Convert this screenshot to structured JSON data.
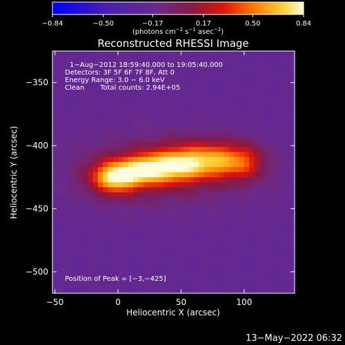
{
  "chart_data": {
    "type": "heatmap",
    "title": "Reconstructed RHESSI Image",
    "xlabel": "Heliocentric X (arcsec)",
    "ylabel": "Heliocentric Y (arcsec)",
    "xlim": [
      -52,
      140
    ],
    "ylim": [
      -517,
      -325
    ],
    "x_ticks": [
      -50,
      0,
      50,
      100
    ],
    "y_ticks": [
      -350,
      -400,
      -450,
      -500
    ],
    "colorbar": {
      "ticks": [
        -0.84,
        -0.5,
        -0.17,
        0.17,
        0.5,
        0.84
      ],
      "tick_labels": [
        "−0.84",
        "−0.50",
        "−0.17",
        "0.17",
        "0.50",
        "0.84"
      ],
      "range": [
        -0.84,
        0.84
      ],
      "unit_parts": [
        "(photons cm",
        "−2",
        " s",
        "−1",
        " asec",
        "−2",
        ")"
      ]
    },
    "annotations": [
      "1−Aug−2012 18:59:40.000 to 19:05:40.000",
      "Detectors: 3F 5F 6F 7F 8F, Att 0",
      "Energy Range: 3.0 − 6.0 keV",
      "Clean",
      "Total counts: 2.94E+05",
      "Position of Peak = [−3,−425]"
    ],
    "sources": [
      {
        "x": -3,
        "y": -425,
        "sx": 13,
        "sy": 9,
        "amp": 0.84
      },
      {
        "x": 22,
        "y": -419,
        "sx": 14,
        "sy": 9,
        "amp": 0.74
      },
      {
        "x": 48,
        "y": -415,
        "sx": 14,
        "sy": 10,
        "amp": 0.68
      },
      {
        "x": 75,
        "y": -412,
        "sx": 15,
        "sy": 10,
        "amp": 0.62
      },
      {
        "x": 100,
        "y": -413,
        "sx": 12,
        "sy": 10,
        "amp": 0.42
      },
      {
        "x": 35,
        "y": -420,
        "sx": 55,
        "sy": 22,
        "amp": 0.2
      }
    ],
    "background": -0.2,
    "grid": false
  },
  "footer": {
    "timestamp": "13−May−2022 06:32"
  }
}
